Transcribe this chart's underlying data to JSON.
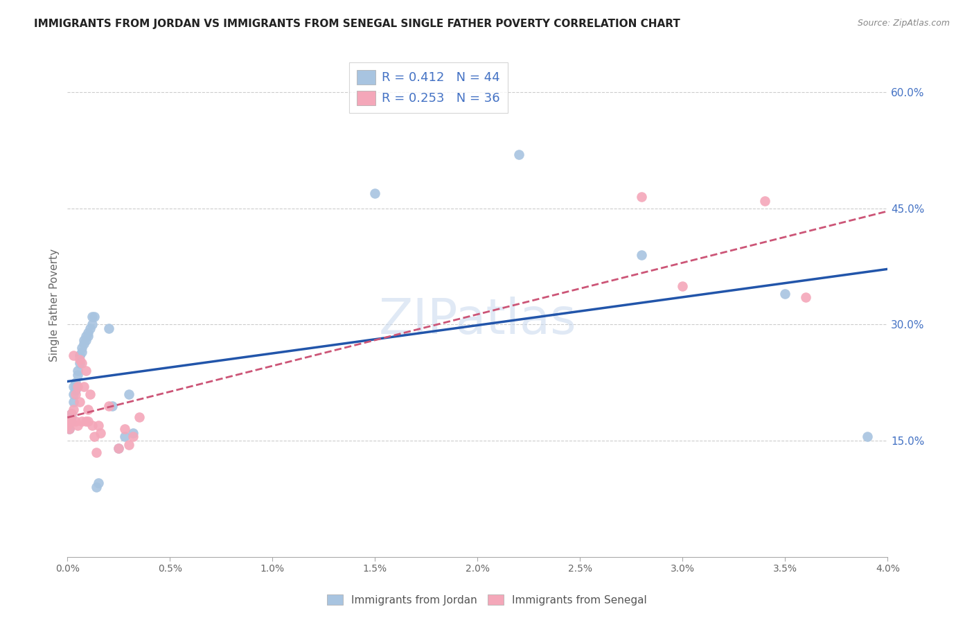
{
  "title": "IMMIGRANTS FROM JORDAN VS IMMIGRANTS FROM SENEGAL SINGLE FATHER POVERTY CORRELATION CHART",
  "source": "Source: ZipAtlas.com",
  "ylabel": "Single Father Poverty",
  "right_yticks": [
    "60.0%",
    "45.0%",
    "30.0%",
    "15.0%"
  ],
  "right_ytick_vals": [
    0.6,
    0.45,
    0.3,
    0.15
  ],
  "legend_jordan": "R = 0.412   N = 44",
  "legend_senegal": "R = 0.253   N = 36",
  "jordan_color": "#a8c4e0",
  "senegal_color": "#f4a7b9",
  "jordan_line_color": "#2255aa",
  "senegal_line_color": "#cc5577",
  "jordan_points_x": [
    0.0,
    0.0,
    0.0001,
    0.0001,
    0.0001,
    0.0002,
    0.0002,
    0.0002,
    0.0003,
    0.0003,
    0.0003,
    0.0004,
    0.0004,
    0.0004,
    0.0005,
    0.0005,
    0.0006,
    0.0006,
    0.0006,
    0.0007,
    0.0007,
    0.0008,
    0.0008,
    0.0009,
    0.0009,
    0.001,
    0.001,
    0.0011,
    0.0012,
    0.0012,
    0.0013,
    0.0014,
    0.0015,
    0.002,
    0.0022,
    0.0025,
    0.0028,
    0.003,
    0.0032,
    0.015,
    0.022,
    0.028,
    0.035,
    0.039
  ],
  "jordan_points_y": [
    0.17,
    0.175,
    0.165,
    0.175,
    0.18,
    0.175,
    0.18,
    0.185,
    0.2,
    0.21,
    0.22,
    0.215,
    0.22,
    0.225,
    0.235,
    0.24,
    0.25,
    0.26,
    0.26,
    0.265,
    0.27,
    0.275,
    0.28,
    0.28,
    0.285,
    0.285,
    0.29,
    0.295,
    0.3,
    0.31,
    0.31,
    0.09,
    0.095,
    0.295,
    0.195,
    0.14,
    0.155,
    0.21,
    0.16,
    0.47,
    0.52,
    0.39,
    0.34,
    0.155
  ],
  "senegal_points_x": [
    0.0,
    0.0001,
    0.0001,
    0.0002,
    0.0002,
    0.0003,
    0.0003,
    0.0004,
    0.0004,
    0.0005,
    0.0005,
    0.0006,
    0.0006,
    0.0007,
    0.0007,
    0.0008,
    0.0009,
    0.0009,
    0.001,
    0.001,
    0.0011,
    0.0012,
    0.0013,
    0.0014,
    0.0015,
    0.0016,
    0.002,
    0.0025,
    0.0028,
    0.003,
    0.0032,
    0.0035,
    0.028,
    0.03,
    0.034,
    0.036
  ],
  "senegal_points_y": [
    0.17,
    0.165,
    0.175,
    0.175,
    0.185,
    0.26,
    0.19,
    0.175,
    0.21,
    0.17,
    0.22,
    0.255,
    0.2,
    0.25,
    0.175,
    0.22,
    0.175,
    0.24,
    0.175,
    0.19,
    0.21,
    0.17,
    0.155,
    0.135,
    0.17,
    0.16,
    0.195,
    0.14,
    0.165,
    0.145,
    0.155,
    0.18,
    0.465,
    0.35,
    0.46,
    0.335
  ],
  "xlim": [
    0.0,
    0.04
  ],
  "ylim": [
    0.0,
    0.65
  ],
  "xticks": [
    0.0,
    0.005,
    0.01,
    0.015,
    0.02,
    0.025,
    0.03,
    0.035,
    0.04
  ],
  "xtick_labels": [
    "0.0%",
    "0.5%",
    "1.0%",
    "1.5%",
    "2.0%",
    "2.5%",
    "3.0%",
    "3.5%",
    "4.0%"
  ]
}
